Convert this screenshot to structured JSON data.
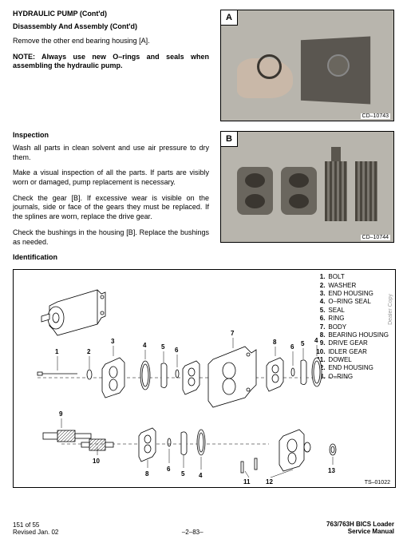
{
  "header": {
    "title": "HYDRAULIC PUMP (Cont'd)",
    "subtitle": "Disassembly And Assembly (Cont'd)"
  },
  "section_a": {
    "text1": "Remove the other end bearing housing [A].",
    "note": "NOTE: Always use new O–rings and seals when assembling the hydraulic pump."
  },
  "inspection": {
    "heading": "Inspection",
    "text1": "Wash all parts in clean solvent and use air pressure to dry them.",
    "text2": "Make a visual inspection of all the parts. If parts are visibly worn or damaged, pump replacement is necessary.",
    "text3": "Check the gear [B]. If excessive wear is visible on the journals, side or face of the gears they must be replaced. If the splines are worn, replace the drive gear.",
    "text4": "Check the bushings in the housing [B]. Replace the bushings as needed."
  },
  "identification": {
    "heading": "Identification"
  },
  "photo_a": {
    "label": "A",
    "code": "CD–10743"
  },
  "photo_b": {
    "label": "B",
    "code": "CD–10744"
  },
  "diagram": {
    "code": "TS–01022",
    "side_text": "Dealer Copy"
  },
  "parts": [
    {
      "num": "1.",
      "name": "BOLT"
    },
    {
      "num": "2.",
      "name": "WASHER"
    },
    {
      "num": "3.",
      "name": "END HOUSING"
    },
    {
      "num": "4.",
      "name": "O–RING SEAL"
    },
    {
      "num": "5.",
      "name": "SEAL"
    },
    {
      "num": "6.",
      "name": "RING"
    },
    {
      "num": "7.",
      "name": "BODY"
    },
    {
      "num": "8.",
      "name": "BEARING HOUSING"
    },
    {
      "num": "9.",
      "name": "DRIVE GEAR"
    },
    {
      "num": "10.",
      "name": "IDLER GEAR"
    },
    {
      "num": "11.",
      "name": "DOWEL"
    },
    {
      "num": "12.",
      "name": "END HOUSING"
    },
    {
      "num": "13.",
      "name": "O–RING"
    }
  ],
  "callouts": {
    "c1": "1",
    "c2": "2",
    "c3": "3",
    "c4": "4",
    "c5": "5",
    "c6": "6",
    "c7": "7",
    "c8": "8",
    "c9": "9",
    "c10": "10",
    "c11": "11",
    "c12": "12",
    "c13": "13"
  },
  "footer": {
    "left_line1": "151 of 55",
    "left_line2": "Revised Jan. 02",
    "center": "–2–83–",
    "right_line1": "763/763H BICS Loader",
    "right_line2": "Service Manual"
  }
}
